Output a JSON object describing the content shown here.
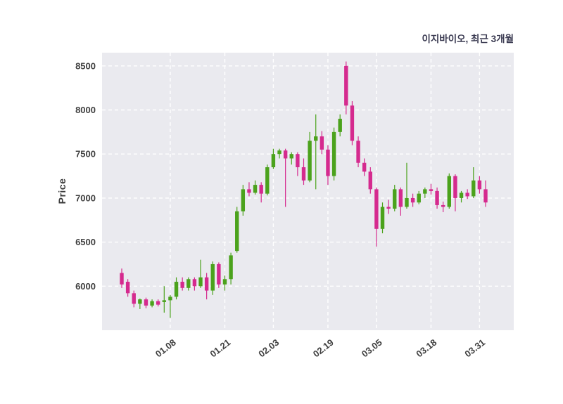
{
  "chart": {
    "title": "이지바이오, 최근 3개월",
    "ylabel": "Price"
  },
  "chart_data": {
    "type": "candlestick",
    "title": "이지바이오, 최근 3개월",
    "ylabel": "Price",
    "xlabel": "",
    "up_color": "#4ba21c",
    "down_color": "#d52a8e",
    "panel_bg": "#eaeaef",
    "grid_color": "#ffffff",
    "ylim": [
      5500,
      8650
    ],
    "y_ticks": [
      6000,
      6500,
      7000,
      7500,
      8000,
      8500
    ],
    "x_tick_labels": [
      "01.08",
      "01.21",
      "02.03",
      "02.19",
      "03.05",
      "03.18",
      "03.31"
    ],
    "x_tick_indices": [
      8,
      17,
      25,
      34,
      42,
      51,
      59
    ],
    "grid": "dashed-white",
    "legend": "none",
    "candles_format": [
      "open",
      "high",
      "low",
      "close"
    ],
    "candles": [
      [
        6150,
        6200,
        5980,
        6020
      ],
      [
        6050,
        6080,
        5880,
        5920
      ],
      [
        5920,
        5950,
        5760,
        5800
      ],
      [
        5800,
        5860,
        5740,
        5850
      ],
      [
        5850,
        5870,
        5750,
        5780
      ],
      [
        5780,
        5850,
        5760,
        5830
      ],
      [
        5830,
        5850,
        5770,
        5790
      ],
      [
        5820,
        6000,
        5700,
        5840
      ],
      [
        5840,
        5900,
        5640,
        5880
      ],
      [
        5880,
        6100,
        5850,
        6050
      ],
      [
        6050,
        6100,
        5950,
        5980
      ],
      [
        5980,
        6100,
        5950,
        6080
      ],
      [
        6080,
        6100,
        5950,
        6000
      ],
      [
        6000,
        6300,
        5980,
        6100
      ],
      [
        6100,
        6150,
        5850,
        5950
      ],
      [
        5950,
        6280,
        5900,
        6250
      ],
      [
        6250,
        6270,
        5980,
        6020
      ],
      [
        6020,
        6120,
        5950,
        6080
      ],
      [
        6080,
        6380,
        6020,
        6350
      ],
      [
        6400,
        6900,
        6380,
        6850
      ],
      [
        6850,
        7150,
        6800,
        7100
      ],
      [
        7100,
        7180,
        7020,
        7060
      ],
      [
        7060,
        7200,
        7040,
        7150
      ],
      [
        7150,
        7180,
        6950,
        7050
      ],
      [
        7050,
        7380,
        7030,
        7350
      ],
      [
        7350,
        7560,
        7330,
        7500
      ],
      [
        7500,
        7560,
        7450,
        7540
      ],
      [
        7540,
        7560,
        6900,
        7450
      ],
      [
        7450,
        7520,
        7380,
        7500
      ],
      [
        7500,
        7520,
        7250,
        7350
      ],
      [
        7350,
        7450,
        7150,
        7200
      ],
      [
        7200,
        7750,
        7180,
        7650
      ],
      [
        7650,
        7950,
        7100,
        7700
      ],
      [
        7700,
        7760,
        7500,
        7550
      ],
      [
        7550,
        7600,
        7150,
        7250
      ],
      [
        7250,
        7800,
        7200,
        7750
      ],
      [
        7750,
        7950,
        7700,
        7900
      ],
      [
        8500,
        8550,
        7950,
        8050
      ],
      [
        8050,
        8100,
        7600,
        7650
      ],
      [
        7650,
        7700,
        7350,
        7400
      ],
      [
        7400,
        7450,
        7250,
        7300
      ],
      [
        7300,
        7350,
        7050,
        7100
      ],
      [
        7100,
        7120,
        6450,
        6650
      ],
      [
        6650,
        6950,
        6600,
        6900
      ],
      [
        6900,
        6980,
        6820,
        6880
      ],
      [
        6880,
        7150,
        6850,
        7100
      ],
      [
        7100,
        7120,
        6800,
        6900
      ],
      [
        6900,
        7400,
        6880,
        7000
      ],
      [
        7000,
        7050,
        6900,
        6950
      ],
      [
        6950,
        7080,
        6930,
        7050
      ],
      [
        7050,
        7120,
        7000,
        7100
      ],
      [
        7100,
        7160,
        7040,
        7080
      ],
      [
        7080,
        7120,
        6880,
        6920
      ],
      [
        6920,
        6960,
        6840,
        6900
      ],
      [
        6900,
        7280,
        6880,
        7250
      ],
      [
        7250,
        7270,
        6850,
        7000
      ],
      [
        7000,
        7080,
        6950,
        7060
      ],
      [
        7060,
        7100,
        6990,
        7020
      ],
      [
        7020,
        7350,
        7000,
        7200
      ],
      [
        7200,
        7250,
        7050,
        7100
      ],
      [
        7100,
        7200,
        6900,
        6950
      ]
    ]
  }
}
